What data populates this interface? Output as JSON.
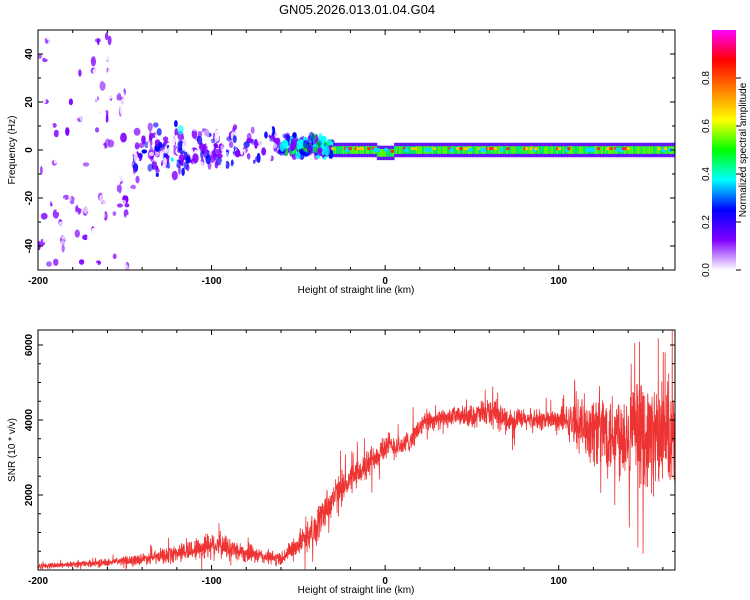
{
  "chart_data": [
    {
      "type": "heatmap",
      "title": "GN05.2026.013.01.04.G04",
      "xlabel": "Height of straight line (km)",
      "ylabel": "Frequency (Hz)",
      "xlim": [
        -200,
        167
      ],
      "ylim": [
        -50,
        50
      ],
      "xticks": [
        -200,
        -100,
        0,
        100
      ],
      "xtick_labels": [
        "-200",
        "-100",
        "0",
        "100"
      ],
      "yticks": [
        -40,
        -20,
        0,
        20,
        40
      ],
      "ytick_labels": [
        "-40",
        "-20",
        "0",
        "20",
        "40"
      ],
      "colorbar": {
        "label": "Normalized spectral amplitude",
        "range": [
          0,
          1
        ],
        "ticks": [
          0.0,
          0.2,
          0.4,
          0.6,
          0.8
        ],
        "tick_labels": [
          "0.0",
          "0.2",
          "0.4",
          "0.6",
          "0.8"
        ],
        "colors": [
          "#ffffff",
          "#8000ff",
          "#0000ff",
          "#00ffff",
          "#00ff00",
          "#ffff00",
          "#ff8000",
          "#ff0000",
          "#ff00ff"
        ]
      },
      "description_points": {
        "regions": [
          {
            "x_range": [
              -200,
              -145
            ],
            "freq_spread_hz": 50,
            "amplitude": 0.1
          },
          {
            "x_range": [
              -145,
              -60
            ],
            "freq_spread_hz": 10,
            "amplitude": 0.3
          },
          {
            "x_range": [
              -60,
              -30
            ],
            "freq_spread_hz": 5,
            "amplitude": 0.5
          },
          {
            "x_range": [
              -30,
              167
            ],
            "freq_spread_hz": 2,
            "amplitude": 0.8
          }
        ]
      }
    },
    {
      "type": "line",
      "xlabel": "Height of straight line (km)",
      "ylabel": "SNR (10 * v/v)",
      "xlim": [
        -200,
        167
      ],
      "ylim": [
        0,
        6400
      ],
      "xticks": [
        -200,
        -100,
        0,
        100
      ],
      "xtick_labels": [
        "-200",
        "-100",
        "0",
        "100"
      ],
      "yticks": [
        2000,
        4000,
        6000
      ],
      "ytick_labels": [
        "2000",
        "4000",
        "6000"
      ],
      "color": "#ee3333",
      "series": [
        {
          "name": "SNR",
          "x": [
            -200,
            -180,
            -160,
            -140,
            -130,
            -120,
            -110,
            -100,
            -90,
            -80,
            -70,
            -60,
            -50,
            -45,
            -40,
            -35,
            -30,
            -25,
            -20,
            -15,
            -10,
            -5,
            0,
            5,
            10,
            15,
            20,
            25,
            30,
            40,
            50,
            60,
            70,
            80,
            90,
            100,
            110,
            120,
            130,
            140,
            150,
            160,
            167
          ],
          "y": [
            100,
            150,
            200,
            300,
            350,
            450,
            550,
            700,
            600,
            450,
            350,
            300,
            700,
            900,
            1100,
            1600,
            1900,
            2200,
            2400,
            2600,
            2800,
            3100,
            3300,
            3300,
            3300,
            3500,
            3800,
            4000,
            4000,
            4100,
            4100,
            4200,
            4000,
            4000,
            4000,
            4000,
            3900,
            3800,
            3700,
            3650,
            3600,
            3500,
            3400
          ],
          "noise_amplitude": [
            80,
            80,
            100,
            150,
            200,
            250,
            300,
            400,
            300,
            250,
            200,
            200,
            300,
            400,
            500,
            500,
            500,
            450,
            400,
            400,
            400,
            400,
            400,
            350,
            300,
            300,
            300,
            300,
            250,
            250,
            300,
            400,
            350,
            300,
            300,
            300,
            600,
            1000,
            1200,
            1300,
            1400,
            1500,
            1500
          ]
        }
      ]
    }
  ]
}
